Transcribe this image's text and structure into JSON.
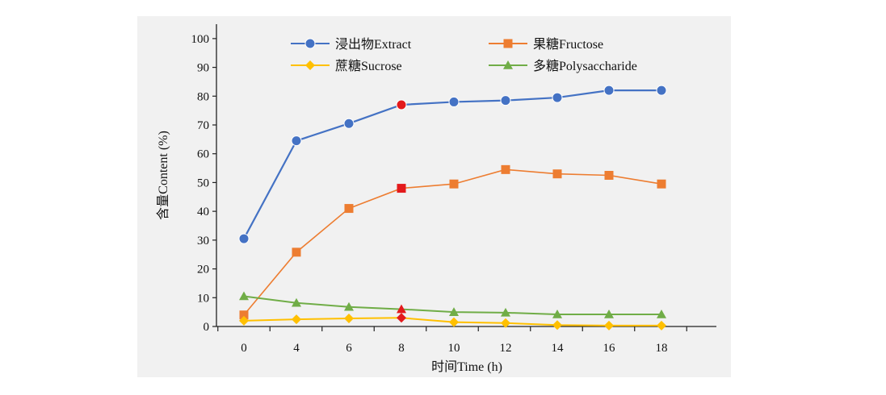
{
  "chart_data": {
    "type": "line",
    "title": "",
    "xlabel": "时间Time (h)",
    "ylabel": "含量Content (%)",
    "x": [
      0,
      4,
      6,
      8,
      10,
      12,
      14,
      16,
      18
    ],
    "x_tick_labels": [
      "0",
      "4",
      "6",
      "8",
      "10",
      "12",
      "14",
      "16",
      "18"
    ],
    "ylim": [
      0,
      105
    ],
    "y_ticks": [
      0,
      10,
      20,
      30,
      40,
      50,
      60,
      70,
      80,
      90,
      100
    ],
    "grid": false,
    "legend_position": "top",
    "series": [
      {
        "name": "浸出物Extract",
        "marker": "circle",
        "color": "#4472c4",
        "values": [
          30.5,
          64.5,
          70.5,
          77,
          78,
          78.5,
          79.5,
          82,
          82
        ]
      },
      {
        "name": "果糖Fructose",
        "marker": "square",
        "color": "#ed7d31",
        "values": [
          4,
          25.8,
          41,
          48,
          49.5,
          54.5,
          53,
          52.5,
          49.5
        ]
      },
      {
        "name": "蔗糖Sucrose",
        "marker": "diamond",
        "color": "#ffc000",
        "values": [
          2,
          2.5,
          2.8,
          3,
          1.5,
          1.2,
          0.5,
          0.3,
          0.3
        ]
      },
      {
        "name": "多糖Polysaccharide",
        "marker": "triangle",
        "color": "#70ad47",
        "values": [
          10.5,
          8.2,
          6.8,
          6,
          5,
          4.8,
          4.2,
          4.2,
          4.2
        ]
      }
    ],
    "highlight": {
      "x": 8,
      "color": "#e31a1c"
    }
  }
}
